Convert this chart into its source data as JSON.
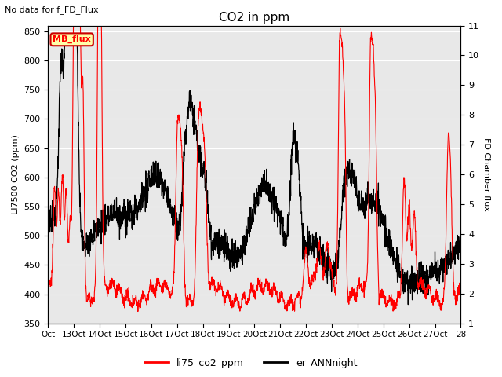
{
  "title": "CO2 in ppm",
  "subtitle": "No data for f_FD_Flux",
  "ylabel_left": "LI7500 CO2 (ppm)",
  "ylabel_right": "FD Chamber flux",
  "ylim_left": [
    350,
    860
  ],
  "ylim_right": [
    1.0,
    11.0
  ],
  "yticks_left": [
    350,
    400,
    450,
    500,
    550,
    600,
    650,
    700,
    750,
    800,
    850
  ],
  "yticks_right": [
    1.0,
    2.0,
    3.0,
    4.0,
    5.0,
    6.0,
    7.0,
    8.0,
    9.0,
    10.0,
    11.0
  ],
  "xtick_labels": [
    "Oct",
    "13Oct",
    "14Oct",
    "15Oct",
    "16Oct",
    "17Oct",
    "18Oct",
    "19Oct",
    "20Oct",
    "21Oct",
    "22Oct",
    "23Oct",
    "24Oct",
    "25Oct",
    "26Oct",
    "27Oct",
    "28"
  ],
  "legend_entries": [
    "li75_co2_ppm",
    "er_ANNnight"
  ],
  "legend_colors": [
    "red",
    "black"
  ],
  "line_lw_red": 0.8,
  "line_lw_black": 0.9,
  "plot_bg_color": "#e8e8e8",
  "legend_box_facecolor": "#ffffaa",
  "legend_box_edgecolor": "#cc0000",
  "mb_flux_label": "MB_flux",
  "figsize": [
    6.4,
    4.8
  ],
  "dpi": 100
}
